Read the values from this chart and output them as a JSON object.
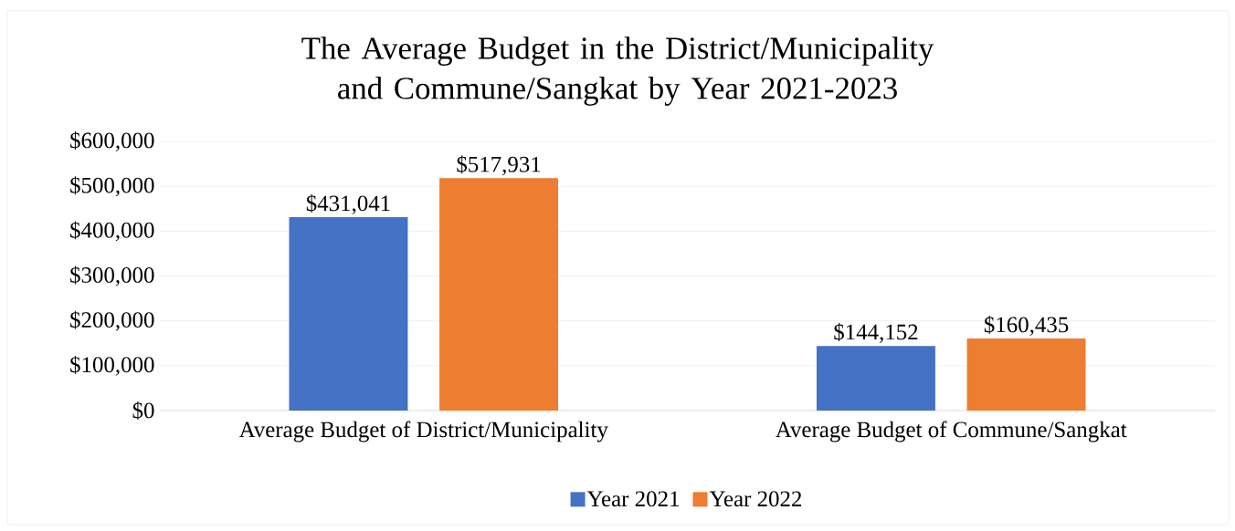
{
  "chart_data": {
    "type": "bar",
    "title": "The Average Budget in the District/Municipality and Commune/Sangkat by Year 2021-2023",
    "categories": [
      "Average Budget of District/Municipality",
      "Average Budget of Commune/Sangkat"
    ],
    "series": [
      {
        "name": "Year 2021",
        "color": "#4472c4",
        "values": [
          431041,
          144152
        ],
        "value_labels": [
          "$431,041",
          "$144,152"
        ]
      },
      {
        "name": "Year 2022",
        "color": "#ed7d31",
        "values": [
          517931,
          160435
        ],
        "value_labels": [
          "$517,931",
          "$160,435"
        ]
      }
    ],
    "ylim": [
      0,
      600000
    ],
    "yticks": [
      {
        "value": 0,
        "label": "$0"
      },
      {
        "value": 100000,
        "label": "$100,000"
      },
      {
        "value": 200000,
        "label": "$200,000"
      },
      {
        "value": 300000,
        "label": "$300,000"
      },
      {
        "value": 400000,
        "label": "$400,000"
      },
      {
        "value": 500000,
        "label": "$500,000"
      },
      {
        "value": 600000,
        "label": "$600,000"
      }
    ],
    "grid": "y",
    "legend": "bottom"
  }
}
